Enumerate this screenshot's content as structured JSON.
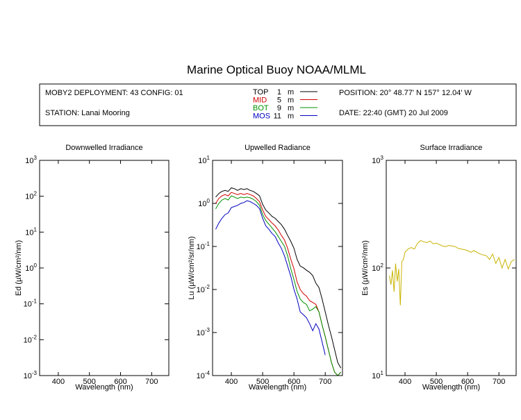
{
  "title": "Marine Optical Buoy NOAA/MLML",
  "header": {
    "deployment": "MOBY2 DEPLOYMENT: 43 CONFIG: 01",
    "station": "STATION: Lanai Mooring",
    "position": "POSITION: 20° 48.77' N   157° 12.04' W",
    "date": "DATE: 22:40 (GMT) 20 Jul 2009"
  },
  "legend": [
    {
      "key": "top",
      "name": "TOP",
      "depth": "1",
      "unit": "m",
      "color": "#000000"
    },
    {
      "key": "mid",
      "name": "MID",
      "depth": "5",
      "unit": "m",
      "color": "#d00000"
    },
    {
      "key": "bot",
      "name": "BOT",
      "depth": "9",
      "unit": "m",
      "color": "#009000"
    },
    {
      "key": "mos",
      "name": "MOS",
      "depth": "11",
      "unit": "m",
      "color": "#0000c0"
    }
  ],
  "chart_data": [
    {
      "type": "line",
      "title": "Downwelled Irradiance",
      "xlabel": "Wavelength (nm)",
      "ylabel": "Ed  (µW/cm²/nm)",
      "xlim": [
        340,
        755
      ],
      "ylim": [
        0.001,
        1000
      ],
      "yscale": "log",
      "xticks": [
        400,
        500,
        600,
        700
      ],
      "yticks": [
        {
          "value": 0.001,
          "base": "10",
          "exp": "-3"
        },
        {
          "value": 0.01,
          "base": "10",
          "exp": "-2"
        },
        {
          "value": 0.1,
          "base": "10",
          "exp": "-1"
        },
        {
          "value": 1,
          "base": "10",
          "exp": "0"
        },
        {
          "value": 10,
          "base": "10",
          "exp": "1"
        },
        {
          "value": 100,
          "base": "10",
          "exp": "2"
        },
        {
          "value": 1000,
          "base": "10",
          "exp": "3"
        }
      ],
      "series": []
    },
    {
      "type": "line",
      "title": "Upwelled Radiance",
      "xlabel": "Wavelength (nm)",
      "ylabel": "Lu  (µW/cm²/sr/nm)",
      "xlim": [
        340,
        755
      ],
      "ylim": [
        0.0001,
        10
      ],
      "yscale": "log",
      "xticks": [
        400,
        500,
        600,
        700
      ],
      "yticks": [
        {
          "value": 0.0001,
          "base": "10",
          "exp": "-4"
        },
        {
          "value": 0.001,
          "base": "10",
          "exp": "-3"
        },
        {
          "value": 0.01,
          "base": "10",
          "exp": "-2"
        },
        {
          "value": 0.1,
          "base": "10",
          "exp": "-1"
        },
        {
          "value": 1,
          "base": "10",
          "exp": "0"
        },
        {
          "value": 10,
          "base": "10",
          "exp": "1"
        }
      ],
      "series": [
        {
          "key": "top",
          "color": "#000000",
          "x": [
            350,
            360,
            370,
            380,
            390,
            400,
            410,
            420,
            430,
            440,
            450,
            460,
            470,
            480,
            490,
            500,
            510,
            520,
            530,
            540,
            550,
            560,
            570,
            580,
            590,
            600,
            610,
            620,
            630,
            640,
            650,
            660,
            670,
            680,
            690,
            700,
            710,
            720,
            730,
            740,
            750
          ],
          "y": [
            1.4,
            1.7,
            1.9,
            2.0,
            1.9,
            2.3,
            2.2,
            2.0,
            2.2,
            2.1,
            2.2,
            2.0,
            1.9,
            1.7,
            1.5,
            0.95,
            0.7,
            0.6,
            0.5,
            0.45,
            0.38,
            0.32,
            0.25,
            0.18,
            0.13,
            0.09,
            0.05,
            0.035,
            0.032,
            0.028,
            0.025,
            0.021,
            0.014,
            0.011,
            0.006,
            0.003,
            0.0015,
            0.0008,
            0.0004,
            0.0002,
            0.00015
          ]
        },
        {
          "key": "mid",
          "color": "#d00000",
          "x": [
            350,
            360,
            370,
            380,
            390,
            400,
            410,
            420,
            430,
            440,
            450,
            460,
            470,
            480,
            490,
            500,
            510,
            520,
            530,
            540,
            550,
            560,
            570,
            580,
            590,
            600,
            610,
            620,
            630,
            640,
            650,
            660,
            670,
            680,
            690,
            700,
            710,
            720,
            730,
            740,
            750
          ],
          "y": [
            1.0,
            1.3,
            1.5,
            1.6,
            1.5,
            1.8,
            1.7,
            1.6,
            1.7,
            1.6,
            1.7,
            1.6,
            1.5,
            1.3,
            1.1,
            0.7,
            0.5,
            0.42,
            0.35,
            0.3,
            0.24,
            0.18,
            0.14,
            0.09,
            0.05,
            0.03,
            0.015,
            0.01,
            0.008,
            0.007,
            0.0055,
            0.005,
            0.0045,
            0.003,
            0.0015,
            0.0008,
            0.0004,
            0.0002,
            0.00012,
            0.0001,
            0.00012
          ]
        },
        {
          "key": "bot",
          "color": "#009000",
          "x": [
            350,
            360,
            370,
            380,
            390,
            400,
            410,
            420,
            430,
            440,
            450,
            460,
            470,
            480,
            490,
            500,
            510,
            520,
            530,
            540,
            550,
            560,
            570,
            580,
            590,
            600,
            610,
            620,
            630,
            640,
            650,
            660,
            670,
            680,
            690,
            700,
            710,
            720,
            730,
            740,
            750
          ],
          "y": [
            0.75,
            1.0,
            1.2,
            1.3,
            1.2,
            1.5,
            1.4,
            1.3,
            1.4,
            1.35,
            1.4,
            1.35,
            1.25,
            1.1,
            0.9,
            0.55,
            0.4,
            0.33,
            0.27,
            0.22,
            0.17,
            0.13,
            0.1,
            0.06,
            0.03,
            0.017,
            0.009,
            0.006,
            0.005,
            0.0045,
            0.0032,
            0.0035,
            0.004,
            0.003,
            0.0015,
            0.0008,
            0.0004,
            0.0002,
            0.00012,
            0.0001,
            0.00012
          ]
        },
        {
          "key": "mos",
          "color": "#0000c0",
          "x": [
            350,
            360,
            370,
            380,
            390,
            400,
            410,
            420,
            430,
            440,
            450,
            460,
            470,
            480,
            490,
            500,
            510,
            520,
            530,
            540,
            550,
            560,
            570,
            580,
            590,
            600,
            610,
            620,
            630,
            640,
            650,
            660,
            670,
            680,
            690,
            700
          ],
          "y": [
            0.25,
            0.35,
            0.45,
            0.55,
            0.6,
            0.8,
            0.85,
            0.9,
            1.0,
            1.05,
            1.15,
            1.1,
            1.0,
            0.9,
            0.75,
            0.45,
            0.3,
            0.25,
            0.2,
            0.17,
            0.12,
            0.09,
            0.06,
            0.035,
            0.02,
            0.01,
            0.006,
            0.003,
            0.0026,
            0.0022,
            0.0016,
            0.0011,
            0.0016,
            0.0012,
            0.0006,
            0.0003
          ]
        }
      ]
    },
    {
      "type": "line",
      "title": "Surface Irradiance",
      "xlabel": "Wavelength (nm)",
      "ylabel": "Es  (µW/cm²/nm)",
      "xlim": [
        340,
        755
      ],
      "ylim": [
        10,
        1000
      ],
      "yscale": "log",
      "xticks": [
        400,
        500,
        600,
        700
      ],
      "yticks": [
        {
          "value": 10,
          "base": "10",
          "exp": "1"
        },
        {
          "value": 100,
          "base": "10",
          "exp": "2"
        },
        {
          "value": 1000,
          "base": "10",
          "exp": "3"
        }
      ],
      "series": [
        {
          "key": "es",
          "color": "#c8b400",
          "x": [
            350,
            355,
            360,
            365,
            370,
            375,
            380,
            385,
            390,
            395,
            400,
            410,
            420,
            430,
            440,
            450,
            460,
            470,
            480,
            490,
            500,
            510,
            520,
            530,
            540,
            550,
            560,
            570,
            580,
            590,
            600,
            610,
            620,
            630,
            640,
            650,
            660,
            670,
            680,
            690,
            700,
            710,
            720,
            730,
            740,
            750
          ],
          "y": [
            85,
            70,
            95,
            60,
            110,
            75,
            98,
            45,
            115,
            120,
            140,
            150,
            155,
            150,
            170,
            180,
            175,
            172,
            178,
            168,
            170,
            165,
            160,
            158,
            162,
            160,
            158,
            152,
            150,
            148,
            145,
            140,
            145,
            140,
            135,
            132,
            130,
            120,
            135,
            110,
            125,
            100,
            120,
            98,
            115,
            120
          ]
        }
      ]
    }
  ]
}
